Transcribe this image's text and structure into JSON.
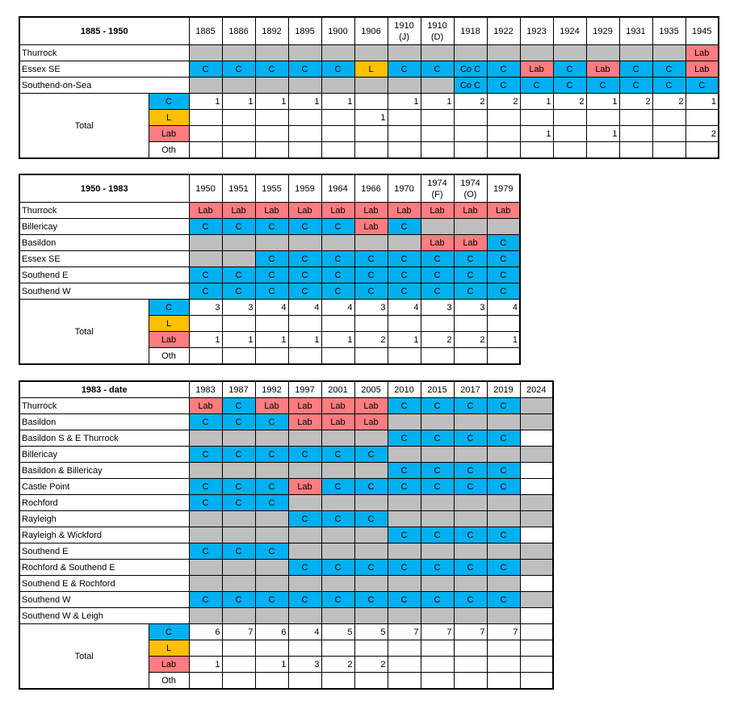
{
  "colors": {
    "C": "#00b0f0",
    "L": "#ffc000",
    "Lab": "#ff7c80",
    "none": "#bfbfbf"
  },
  "tables": [
    {
      "title": "1885 - 1950",
      "years": [
        "1885",
        "1886",
        "1892",
        "1895",
        "1900",
        "1906",
        "1910\n(J)",
        "1910\n(D)",
        "1918",
        "1922",
        "1923",
        "1924",
        "1929",
        "1931",
        "1935",
        "1945"
      ],
      "rows": [
        {
          "seat": "Thurrock",
          "cells": [
            "X",
            "X",
            "X",
            "X",
            "X",
            "X",
            "X",
            "X",
            "X",
            "X",
            "X",
            "X",
            "X",
            "X",
            "X",
            "Lab"
          ]
        },
        {
          "seat": "Essex SE",
          "cells": [
            "C",
            "C",
            "C",
            "C",
            "C",
            "L",
            "C",
            "C",
            "Co C",
            "C",
            "Lab",
            "C",
            "Lab",
            "C",
            "C",
            "Lab"
          ]
        },
        {
          "seat": "Southend-on-Sea",
          "cells": [
            "X",
            "X",
            "X",
            "X",
            "X",
            "X",
            "X",
            "X",
            "Co C",
            "C",
            "C",
            "C",
            "C",
            "C",
            "C",
            "C"
          ]
        }
      ],
      "total_label": "Total",
      "totals": [
        {
          "party": "C",
          "values": [
            "1",
            "1",
            "1",
            "1",
            "1",
            "",
            "1",
            "1",
            "2",
            "2",
            "1",
            "2",
            "1",
            "2",
            "2",
            "1"
          ]
        },
        {
          "party": "L",
          "values": [
            "",
            "",
            "",
            "",
            "",
            "1",
            "",
            "",
            "",
            "",
            "",
            "",
            "",
            "",
            "",
            ""
          ]
        },
        {
          "party": "Lab",
          "values": [
            "",
            "",
            "",
            "",
            "",
            "",
            "",
            "",
            "",
            "",
            "1",
            "",
            "1",
            "",
            "",
            "2"
          ]
        },
        {
          "party": "Oth",
          "values": [
            "",
            "",
            "",
            "",
            "",
            "",
            "",
            "",
            "",
            "",
            "",
            "",
            "",
            "",
            "",
            ""
          ]
        }
      ]
    },
    {
      "title": "1950 - 1983",
      "years": [
        "1950",
        "1951",
        "1955",
        "1959",
        "1964",
        "1966",
        "1970",
        "1974\n(F)",
        "1974\n(O)",
        "1979"
      ],
      "rows": [
        {
          "seat": "Thurrock",
          "cells": [
            "Lab",
            "Lab",
            "Lab",
            "Lab",
            "Lab",
            "Lab",
            "Lab",
            "Lab",
            "Lab",
            "Lab"
          ]
        },
        {
          "seat": "Billericay",
          "cells": [
            "C",
            "C",
            "C",
            "C",
            "C",
            "Lab",
            "C",
            "X",
            "X",
            "X"
          ]
        },
        {
          "seat": "Basildon",
          "cells": [
            "X",
            "X",
            "X",
            "X",
            "X",
            "X",
            "X",
            "Lab",
            "Lab",
            "C"
          ]
        },
        {
          "seat": "Essex SE",
          "cells": [
            "X",
            "X",
            "C",
            "C",
            "C",
            "C",
            "C",
            "C",
            "C",
            "C"
          ]
        },
        {
          "seat": "Southend E",
          "cells": [
            "C",
            "C",
            "C",
            "C",
            "C",
            "C",
            "C",
            "C",
            "C",
            "C"
          ]
        },
        {
          "seat": "Southend W",
          "cells": [
            "C",
            "C",
            "C",
            "C",
            "C",
            "C",
            "C",
            "C",
            "C",
            "C"
          ]
        }
      ],
      "total_label": "Total",
      "totals": [
        {
          "party": "C",
          "values": [
            "3",
            "3",
            "4",
            "4",
            "4",
            "3",
            "4",
            "3",
            "3",
            "4"
          ]
        },
        {
          "party": "L",
          "values": [
            "",
            "",
            "",
            "",
            "",
            "",
            "",
            "",
            "",
            ""
          ]
        },
        {
          "party": "Lab",
          "values": [
            "1",
            "1",
            "1",
            "1",
            "1",
            "2",
            "1",
            "2",
            "2",
            "1"
          ]
        },
        {
          "party": "Oth",
          "values": [
            "",
            "",
            "",
            "",
            "",
            "",
            "",
            "",
            "",
            ""
          ]
        }
      ]
    },
    {
      "title": "1983 - date",
      "years": [
        "1983",
        "1987",
        "1992",
        "1997",
        "2001",
        "2005",
        "2010",
        "2015",
        "2017",
        "2019",
        "2024"
      ],
      "rows": [
        {
          "seat": "Thurrock",
          "cells": [
            "Lab",
            "C",
            "Lab",
            "Lab",
            "Lab",
            "Lab",
            "C",
            "C",
            "C",
            "C",
            "X"
          ]
        },
        {
          "seat": "Basildon",
          "cells": [
            "C",
            "C",
            "C",
            "Lab",
            "Lab",
            "Lab",
            "X",
            "X",
            "X",
            "X",
            "X"
          ]
        },
        {
          "seat": "Basildon S & E Thurrock",
          "cells": [
            "X",
            "X",
            "X",
            "X",
            "X",
            "X",
            "C",
            "C",
            "C",
            "C",
            ""
          ]
        },
        {
          "seat": "Billericay",
          "cells": [
            "C",
            "C",
            "C",
            "C",
            "C",
            "C",
            "X",
            "X",
            "X",
            "X",
            "X"
          ]
        },
        {
          "seat": "Basildon & Billericay",
          "cells": [
            "X",
            "X",
            "X",
            "X",
            "X",
            "X",
            "C",
            "C",
            "C",
            "C",
            ""
          ]
        },
        {
          "seat": "Castle Point",
          "cells": [
            "C",
            "C",
            "C",
            "Lab",
            "C",
            "C",
            "C",
            "C",
            "C",
            "C",
            ""
          ]
        },
        {
          "seat": "Rochford",
          "cells": [
            "C",
            "C",
            "C",
            "X",
            "X",
            "X",
            "X",
            "X",
            "X",
            "X",
            "X"
          ]
        },
        {
          "seat": "Rayleigh",
          "cells": [
            "X",
            "X",
            "X",
            "C",
            "C",
            "C",
            "X",
            "X",
            "X",
            "X",
            "X"
          ]
        },
        {
          "seat": "Rayleigh & Wickford",
          "cells": [
            "X",
            "X",
            "X",
            "X",
            "X",
            "X",
            "C",
            "C",
            "C",
            "C",
            ""
          ]
        },
        {
          "seat": "Southend E",
          "cells": [
            "C",
            "C",
            "C",
            "X",
            "X",
            "X",
            "X",
            "X",
            "X",
            "X",
            "X"
          ]
        },
        {
          "seat": "Rochford & Southend E",
          "cells": [
            "X",
            "X",
            "X",
            "C",
            "C",
            "C",
            "C",
            "C",
            "C",
            "C",
            "X"
          ]
        },
        {
          "seat": "Southend E & Rochford",
          "cells": [
            "X",
            "X",
            "X",
            "X",
            "X",
            "X",
            "X",
            "X",
            "X",
            "X",
            ""
          ]
        },
        {
          "seat": "Southend W",
          "cells": [
            "C",
            "C",
            "C",
            "C",
            "C",
            "C",
            "C",
            "C",
            "C",
            "C",
            "X"
          ]
        },
        {
          "seat": "Southend W & Leigh",
          "cells": [
            "X",
            "X",
            "X",
            "X",
            "X",
            "X",
            "X",
            "X",
            "X",
            "X",
            ""
          ]
        }
      ],
      "total_label": "Total",
      "totals": [
        {
          "party": "C",
          "values": [
            "6",
            "7",
            "6",
            "4",
            "5",
            "5",
            "7",
            "7",
            "7",
            "7",
            ""
          ]
        },
        {
          "party": "L",
          "values": [
            "",
            "",
            "",
            "",
            "",
            "",
            "",
            "",
            "",
            "",
            ""
          ]
        },
        {
          "party": "Lab",
          "values": [
            "1",
            "",
            "1",
            "3",
            "2",
            "2",
            "",
            "",
            "",
            "",
            ""
          ]
        },
        {
          "party": "Oth",
          "values": [
            "",
            "",
            "",
            "",
            "",
            "",
            "",
            "",
            "",
            "",
            ""
          ]
        }
      ]
    }
  ]
}
